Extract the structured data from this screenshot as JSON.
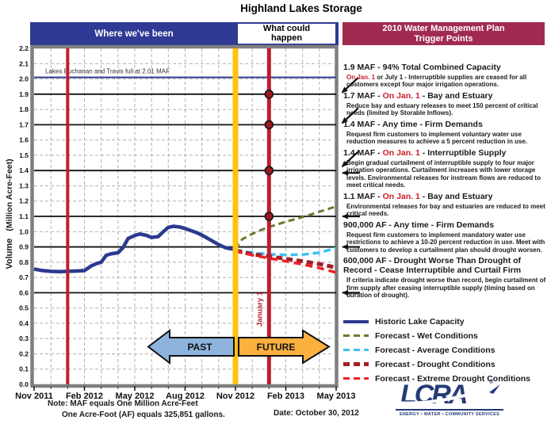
{
  "title": "Highland Lakes Storage",
  "header": {
    "past_band": "Where we've been",
    "future_line1": "What could",
    "future_line2": "happen",
    "trigger_line1": "2010 Water Management Plan",
    "trigger_line2": "Trigger Points"
  },
  "chart_data": {
    "type": "line",
    "title": "Highland Lakes Storage",
    "ylabel_main": "Volume",
    "ylabel_sub": "(Million Acre-Feet)",
    "ylim": [
      0,
      2.2
    ],
    "ytick_step": 0.1,
    "x_months": 18,
    "grid": true,
    "xticks": [
      {
        "m": 0,
        "label": "Nov 2011"
      },
      {
        "m": 3,
        "label": "Feb 2012"
      },
      {
        "m": 6,
        "label": "May 2012"
      },
      {
        "m": 9,
        "label": "Aug 2012"
      },
      {
        "m": 12,
        "label": "Nov 2012"
      },
      {
        "m": 15,
        "label": "Feb 2013"
      },
      {
        "m": 18,
        "label": "May 2013"
      }
    ],
    "full_line": {
      "value": 2.01,
      "label": "Lakes Buchanan and Travis full at 2.01 MAF",
      "color": "#2b3990"
    },
    "trigger_levels": [
      1.9,
      1.7,
      1.4,
      1.1,
      0.9,
      0.6
    ],
    "vertical_lines": [
      {
        "x": 2,
        "color": "#be1e2d",
        "width": 4,
        "label": ""
      },
      {
        "x": 12,
        "color": "#ffc20e",
        "width": 7,
        "label": ""
      },
      {
        "x": 14,
        "color": "#be1e2d",
        "width": 5,
        "label": "January 1"
      }
    ],
    "trigger_dots": {
      "x": 14,
      "values": [
        1.9,
        1.7,
        1.4,
        1.1
      ],
      "color": "#9b1b21"
    },
    "series": [
      {
        "name": "Historic Lake Capacity",
        "color": "#2b3990",
        "width": 4.5,
        "dash": "",
        "x": [
          0,
          0.5,
          1,
          1.5,
          2,
          2.5,
          3,
          3.4,
          3.7,
          4,
          4.3,
          4.6,
          5,
          5.3,
          5.6,
          6,
          6.3,
          6.7,
          7,
          7.4,
          7.7,
          8,
          8.3,
          8.7,
          9,
          9.4,
          9.8,
          10.2,
          10.6,
          11,
          11.4,
          11.7,
          12
        ],
        "values": [
          0.755,
          0.745,
          0.74,
          0.738,
          0.74,
          0.742,
          0.745,
          0.775,
          0.79,
          0.8,
          0.845,
          0.855,
          0.862,
          0.895,
          0.955,
          0.975,
          0.985,
          0.975,
          0.962,
          0.968,
          1.0,
          1.028,
          1.035,
          1.03,
          1.02,
          1.005,
          0.988,
          0.965,
          0.94,
          0.915,
          0.895,
          0.888,
          0.885
        ]
      },
      {
        "name": "Forecast - Wet Conditions",
        "color": "#6d7a2e",
        "width": 3,
        "dash": "8 5",
        "x": [
          12,
          12.4,
          13,
          13.5,
          14,
          15,
          16,
          17,
          18
        ],
        "values": [
          0.885,
          0.95,
          0.985,
          1.01,
          1.03,
          1.065,
          1.095,
          1.13,
          1.165
        ]
      },
      {
        "name": "Forecast - Average Conditions",
        "color": "#3bc3f0",
        "width": 3.5,
        "dash": "9 5",
        "x": [
          12,
          13,
          14,
          15,
          16,
          17,
          18
        ],
        "values": [
          0.88,
          0.862,
          0.852,
          0.848,
          0.85,
          0.862,
          0.893
        ]
      },
      {
        "name": "Forecast - Drought Conditions",
        "color": "#a21f28",
        "width": 5,
        "dash": "8 5",
        "x": [
          12,
          13,
          14,
          15,
          16,
          17,
          18
        ],
        "values": [
          0.875,
          0.852,
          0.838,
          0.822,
          0.806,
          0.788,
          0.765
        ]
      },
      {
        "name": "Forecast - Extreme Drought Conditions",
        "color": "#ec2028",
        "width": 3.5,
        "dash": "9 6",
        "x": [
          12,
          13,
          14,
          15,
          16,
          17,
          18
        ],
        "values": [
          0.872,
          0.846,
          0.826,
          0.806,
          0.786,
          0.762,
          0.732
        ]
      }
    ]
  },
  "annotations": [
    {
      "level": 1.9,
      "arrow": "diag",
      "dy": 0,
      "title_parts": [
        {
          "t": "1.9 MAF - 94% Total Combined Capacity",
          "c": "#1a1a1a"
        }
      ],
      "desc_parts": [
        {
          "t": "On Jan. 1",
          "c": "#c9202a"
        },
        {
          "t": " or July 1 - Interruptible supplies are ceased for all customers except four major irrigation operations.",
          "c": "#1a1a1a"
        }
      ]
    },
    {
      "level": 1.7,
      "arrow": "diag",
      "dy": 0,
      "title_parts": [
        {
          "t": "1.7 MAF - ",
          "c": "#1a1a1a"
        },
        {
          "t": "On Jan. 1",
          "c": "#c9202a"
        },
        {
          "t": " - Bay and Estuary",
          "c": "#1a1a1a"
        }
      ],
      "desc_parts": [
        {
          "t": "Reduce bay and estuary releases to meet 150 percent of critical needs (limited by Storable Inflows).",
          "c": "#1a1a1a"
        }
      ]
    },
    {
      "level": 1.4,
      "arrow": "diag",
      "dy": -3,
      "title_parts": [
        {
          "t": "1.4 MAF - Any time - Firm Demands",
          "c": "#1a1a1a"
        }
      ],
      "desc_parts": [
        {
          "t": "Request firm customers to implement voluntary water use reduction measures to achieve a 5 percent reduction in use.",
          "c": "#1a1a1a"
        }
      ]
    },
    {
      "level": 1.4,
      "arrow": "horiz",
      "dy": 3,
      "title_parts": [
        {
          "t": "1.4 MAF - ",
          "c": "#1a1a1a"
        },
        {
          "t": "On Jan. 1",
          "c": "#c9202a"
        },
        {
          "t": " - Interruptible Supply",
          "c": "#1a1a1a"
        }
      ],
      "desc_parts": [
        {
          "t": "Begin gradual curtailment of interruptible supply to four major irrigation operations.  Curtailment increases with lower storage levels.  Environmental releases for instream flows are reduced to meet critical needs.",
          "c": "#1a1a1a"
        }
      ]
    },
    {
      "level": 1.1,
      "arrow": "horiz",
      "dy": 0,
      "title_parts": [
        {
          "t": "1.1 MAF - ",
          "c": "#1a1a1a"
        },
        {
          "t": "On Jan. 1",
          "c": "#c9202a"
        },
        {
          "t": " - Bay and Estuary",
          "c": "#1a1a1a"
        }
      ],
      "desc_parts": [
        {
          "t": "Environmental releases for bay and estuaries are reduced to meet critical needs.",
          "c": "#1a1a1a"
        }
      ]
    },
    {
      "level": 0.9,
      "arrow": "horiz",
      "dy": 0,
      "title_parts": [
        {
          "t": "900,000 AF - Any time - Firm Demands",
          "c": "#1a1a1a"
        }
      ],
      "desc_parts": [
        {
          "t": "Request firm customers to implement mandatory water use restrictions to achieve a 10-20 percent reduction in use.  Meet with customers to develop a curtailment plan should drought worsen.",
          "c": "#1a1a1a"
        }
      ]
    },
    {
      "level": 0.6,
      "arrow": "horiz",
      "dy": 0,
      "title_parts": [
        {
          "t": "600,000 AF - Drought Worse Than Drought of Record - Cease Interruptible and Curtail Firm",
          "c": "#1a1a1a"
        }
      ],
      "desc_parts": [
        {
          "t": "If criteria indicate drought worse than record, begin curtailment of firm supply after ceasing interruptible supply (timing based on duration of drought).",
          "c": "#1a1a1a"
        }
      ]
    }
  ],
  "legend": [
    {
      "label": "Historic Lake Capacity",
      "color": "#2b3990",
      "dash": false,
      "height": 4
    },
    {
      "label": "Forecast - Wet Conditions",
      "color": "#6d7a2e",
      "dash": true,
      "height": 3
    },
    {
      "label": "Forecast - Average Conditions",
      "color": "#3bc3f0",
      "dash": true,
      "height": 3.5
    },
    {
      "label": "Forecast - Drought Conditions",
      "color": "#a21f28",
      "dash": true,
      "height": 5
    },
    {
      "label": "Forecast - Extreme Drought Conditions",
      "color": "#ec2028",
      "dash": true,
      "height": 3.5
    }
  ],
  "past_future": {
    "past": "PAST",
    "future": "FUTURE",
    "past_color": "#8db4dc",
    "future_color": "#fbb040"
  },
  "notes": {
    "line1": "Note: MAF equals One Million Acre-Feet",
    "line2": "One Acre-Foot (AF) equals 325,851 gallons."
  },
  "date_label": "Date: October 30, 2012",
  "logo": {
    "text": "LCRA",
    "registered": "®",
    "tagline": "ENERGY • WATER • COMMUNITY SERVICES"
  }
}
